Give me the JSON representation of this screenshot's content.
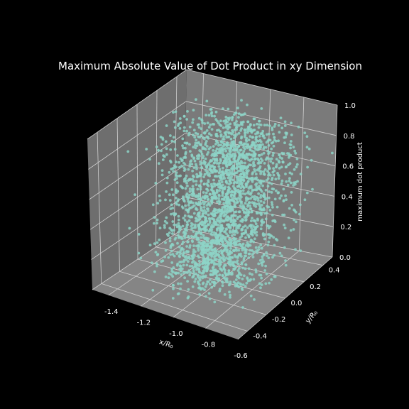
{
  "chart_data": {
    "type": "scatter",
    "projection": "3d",
    "title": "Maximum Absolute Value of Dot Product in xy Dimension",
    "xlabel": "x/R₀",
    "ylabel": "y/R₀",
    "zlabel": "maximum dot product",
    "xlim": [
      -1.5,
      -0.6
    ],
    "ylim": [
      -0.5,
      0.5
    ],
    "zlim": [
      0.0,
      1.0
    ],
    "x_ticks": [
      "-1.4",
      "-1.2",
      "-1.0",
      "-0.8",
      "-0.6"
    ],
    "y_ticks": [
      "-0.4",
      "-0.2",
      "0.0",
      "0.2",
      "0.4"
    ],
    "z_ticks": [
      "0.0",
      "0.2",
      "0.4",
      "0.6",
      "0.8",
      "1.0"
    ],
    "grid": true,
    "legend": false,
    "colors": {
      "background": "#000000",
      "pane": "#7a7a7a",
      "pane_side": "#6e6e6e",
      "pane_floor": "#858585",
      "grid": "#d0d0d0",
      "points": "#8dd3c7",
      "text": "#ffffff"
    },
    "points": {
      "description_count": 4000,
      "x_center": -1.05,
      "x_spread": 0.14,
      "y_center": 0.0,
      "y_spread": 0.14,
      "z_range": [
        0.0,
        1.0
      ]
    }
  }
}
